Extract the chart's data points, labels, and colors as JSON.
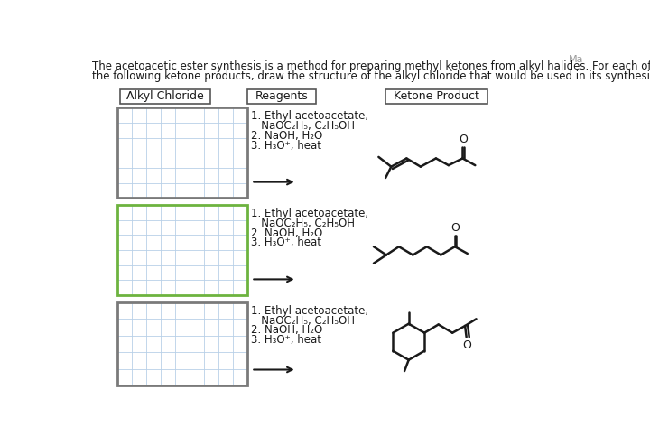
{
  "background_color": "#ffffff",
  "title_line1": "The acetoacetic ester synthesis is a method for preparing methyl ketones from alkyl halides. For each of",
  "title_line2": "the following ketone products, draw the structure of the alkyl chloride that would be used in its synthesis.",
  "header1": "Alkyl Chloride",
  "header2": "Reagents",
  "header3": "Ketone Product",
  "grid_color": "#b8d0e8",
  "grid_border1": "#7a7a7a",
  "grid_border2": "#6db33f",
  "grid_border3": "#7a7a7a",
  "text_color": "#1a1a1a",
  "arrow_color": "#1a1a1a",
  "ma_color": "#999999",
  "figsize": [
    7.2,
    4.93
  ],
  "dpi": 100
}
